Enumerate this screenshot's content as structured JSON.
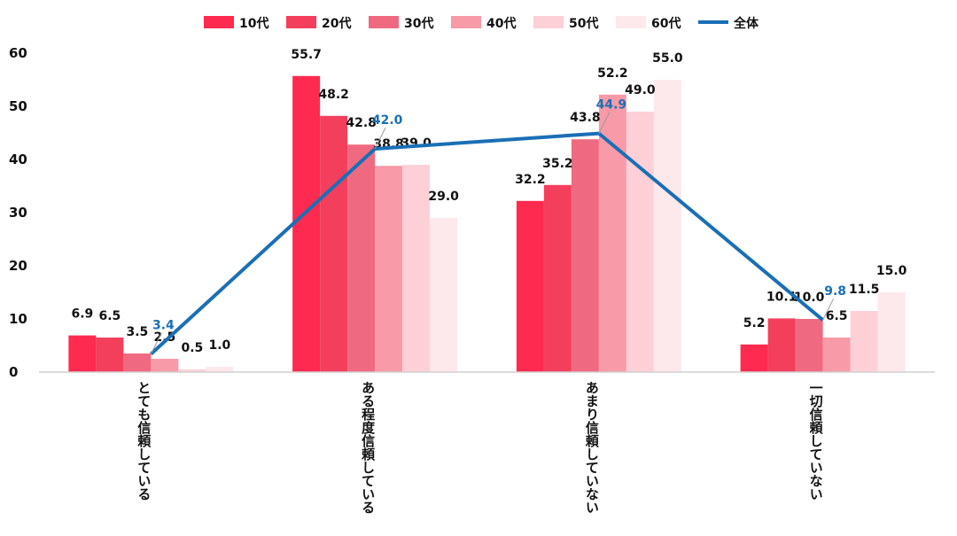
{
  "chart_data": {
    "type": "bar",
    "categories": [
      "とても信頼している",
      "ある程度信頼している",
      "あまり信頼していない",
      "一切信頼していない"
    ],
    "series": [
      {
        "name": "10代",
        "color": "#ff2a4f",
        "values": [
          6.9,
          55.7,
          32.2,
          5.2
        ]
      },
      {
        "name": "20代",
        "color": "#f43f5c",
        "values": [
          6.5,
          48.2,
          35.2,
          10.1
        ]
      },
      {
        "name": "30代",
        "color": "#ef6a80",
        "values": [
          3.5,
          42.8,
          43.8,
          10.0
        ]
      },
      {
        "name": "40代",
        "color": "#f89aa8",
        "values": [
          2.5,
          38.8,
          52.2,
          6.5
        ]
      },
      {
        "name": "50代",
        "color": "#fdd0d8",
        "values": [
          0.5,
          39.0,
          49.0,
          11.5
        ]
      },
      {
        "name": "60代",
        "color": "#fde8ec",
        "values": [
          1.0,
          29.0,
          55.0,
          15.0
        ]
      }
    ],
    "overall": {
      "name": "全体",
      "type": "line",
      "color": "#1a6fb5",
      "values": [
        3.4,
        42.0,
        44.9,
        9.8
      ]
    },
    "value_labels": [
      [
        "6.9",
        "6.5",
        "3.5",
        "2.5",
        "0.5",
        "1.0"
      ],
      [
        "55.7",
        "48.2",
        "42.8",
        "38.8",
        "39.0",
        "29.0"
      ],
      [
        "32.2",
        "35.2",
        "43.8",
        "52.2",
        "49.0",
        "55.0"
      ],
      [
        "5.2",
        "10.1",
        "10.0",
        "6.5",
        "11.5",
        "15.0"
      ]
    ],
    "overall_labels": [
      "3.4",
      "42.0",
      "44.9",
      "9.8"
    ],
    "ylim": [
      0,
      60
    ],
    "yticks": [
      "0",
      "10",
      "20",
      "30",
      "40",
      "50",
      "60"
    ],
    "legend_position": "top-center"
  }
}
